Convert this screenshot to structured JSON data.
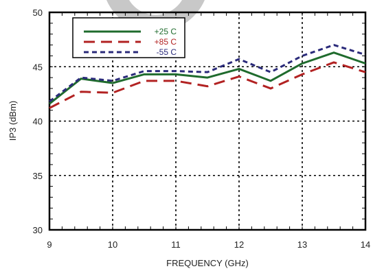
{
  "chart_data": {
    "type": "line",
    "xlabel": "FREQUENCY (GHz)",
    "ylabel": "IP3 (dBm)",
    "xlim": [
      9,
      14
    ],
    "ylim": [
      30,
      50
    ],
    "x_ticks": [
      9,
      10,
      11,
      12,
      13,
      14
    ],
    "y_ticks": [
      30,
      35,
      40,
      45,
      50
    ],
    "grid": true,
    "legend_position": "top-left",
    "x": [
      9,
      9.5,
      10,
      10.5,
      11,
      11.5,
      12,
      12.5,
      13,
      13.5,
      14
    ],
    "series": [
      {
        "name": "+25 C",
        "color": "#1f6b2d",
        "dash": "solid",
        "values": [
          41.6,
          43.9,
          43.5,
          44.3,
          44.3,
          44.0,
          44.8,
          43.7,
          45.3,
          46.3,
          45.3
        ]
      },
      {
        "name": "+85 C",
        "color": "#b22222",
        "dash": "long-dash",
        "values": [
          41.2,
          42.7,
          42.6,
          43.7,
          43.7,
          43.2,
          44.1,
          43.0,
          44.3,
          45.4,
          44.5
        ]
      },
      {
        "name": "-55 C",
        "color": "#2a2a7a",
        "dash": "short-dash",
        "values": [
          41.8,
          44.0,
          43.7,
          44.6,
          44.6,
          44.5,
          45.7,
          44.5,
          46.0,
          47.0,
          46.1
        ]
      }
    ]
  }
}
